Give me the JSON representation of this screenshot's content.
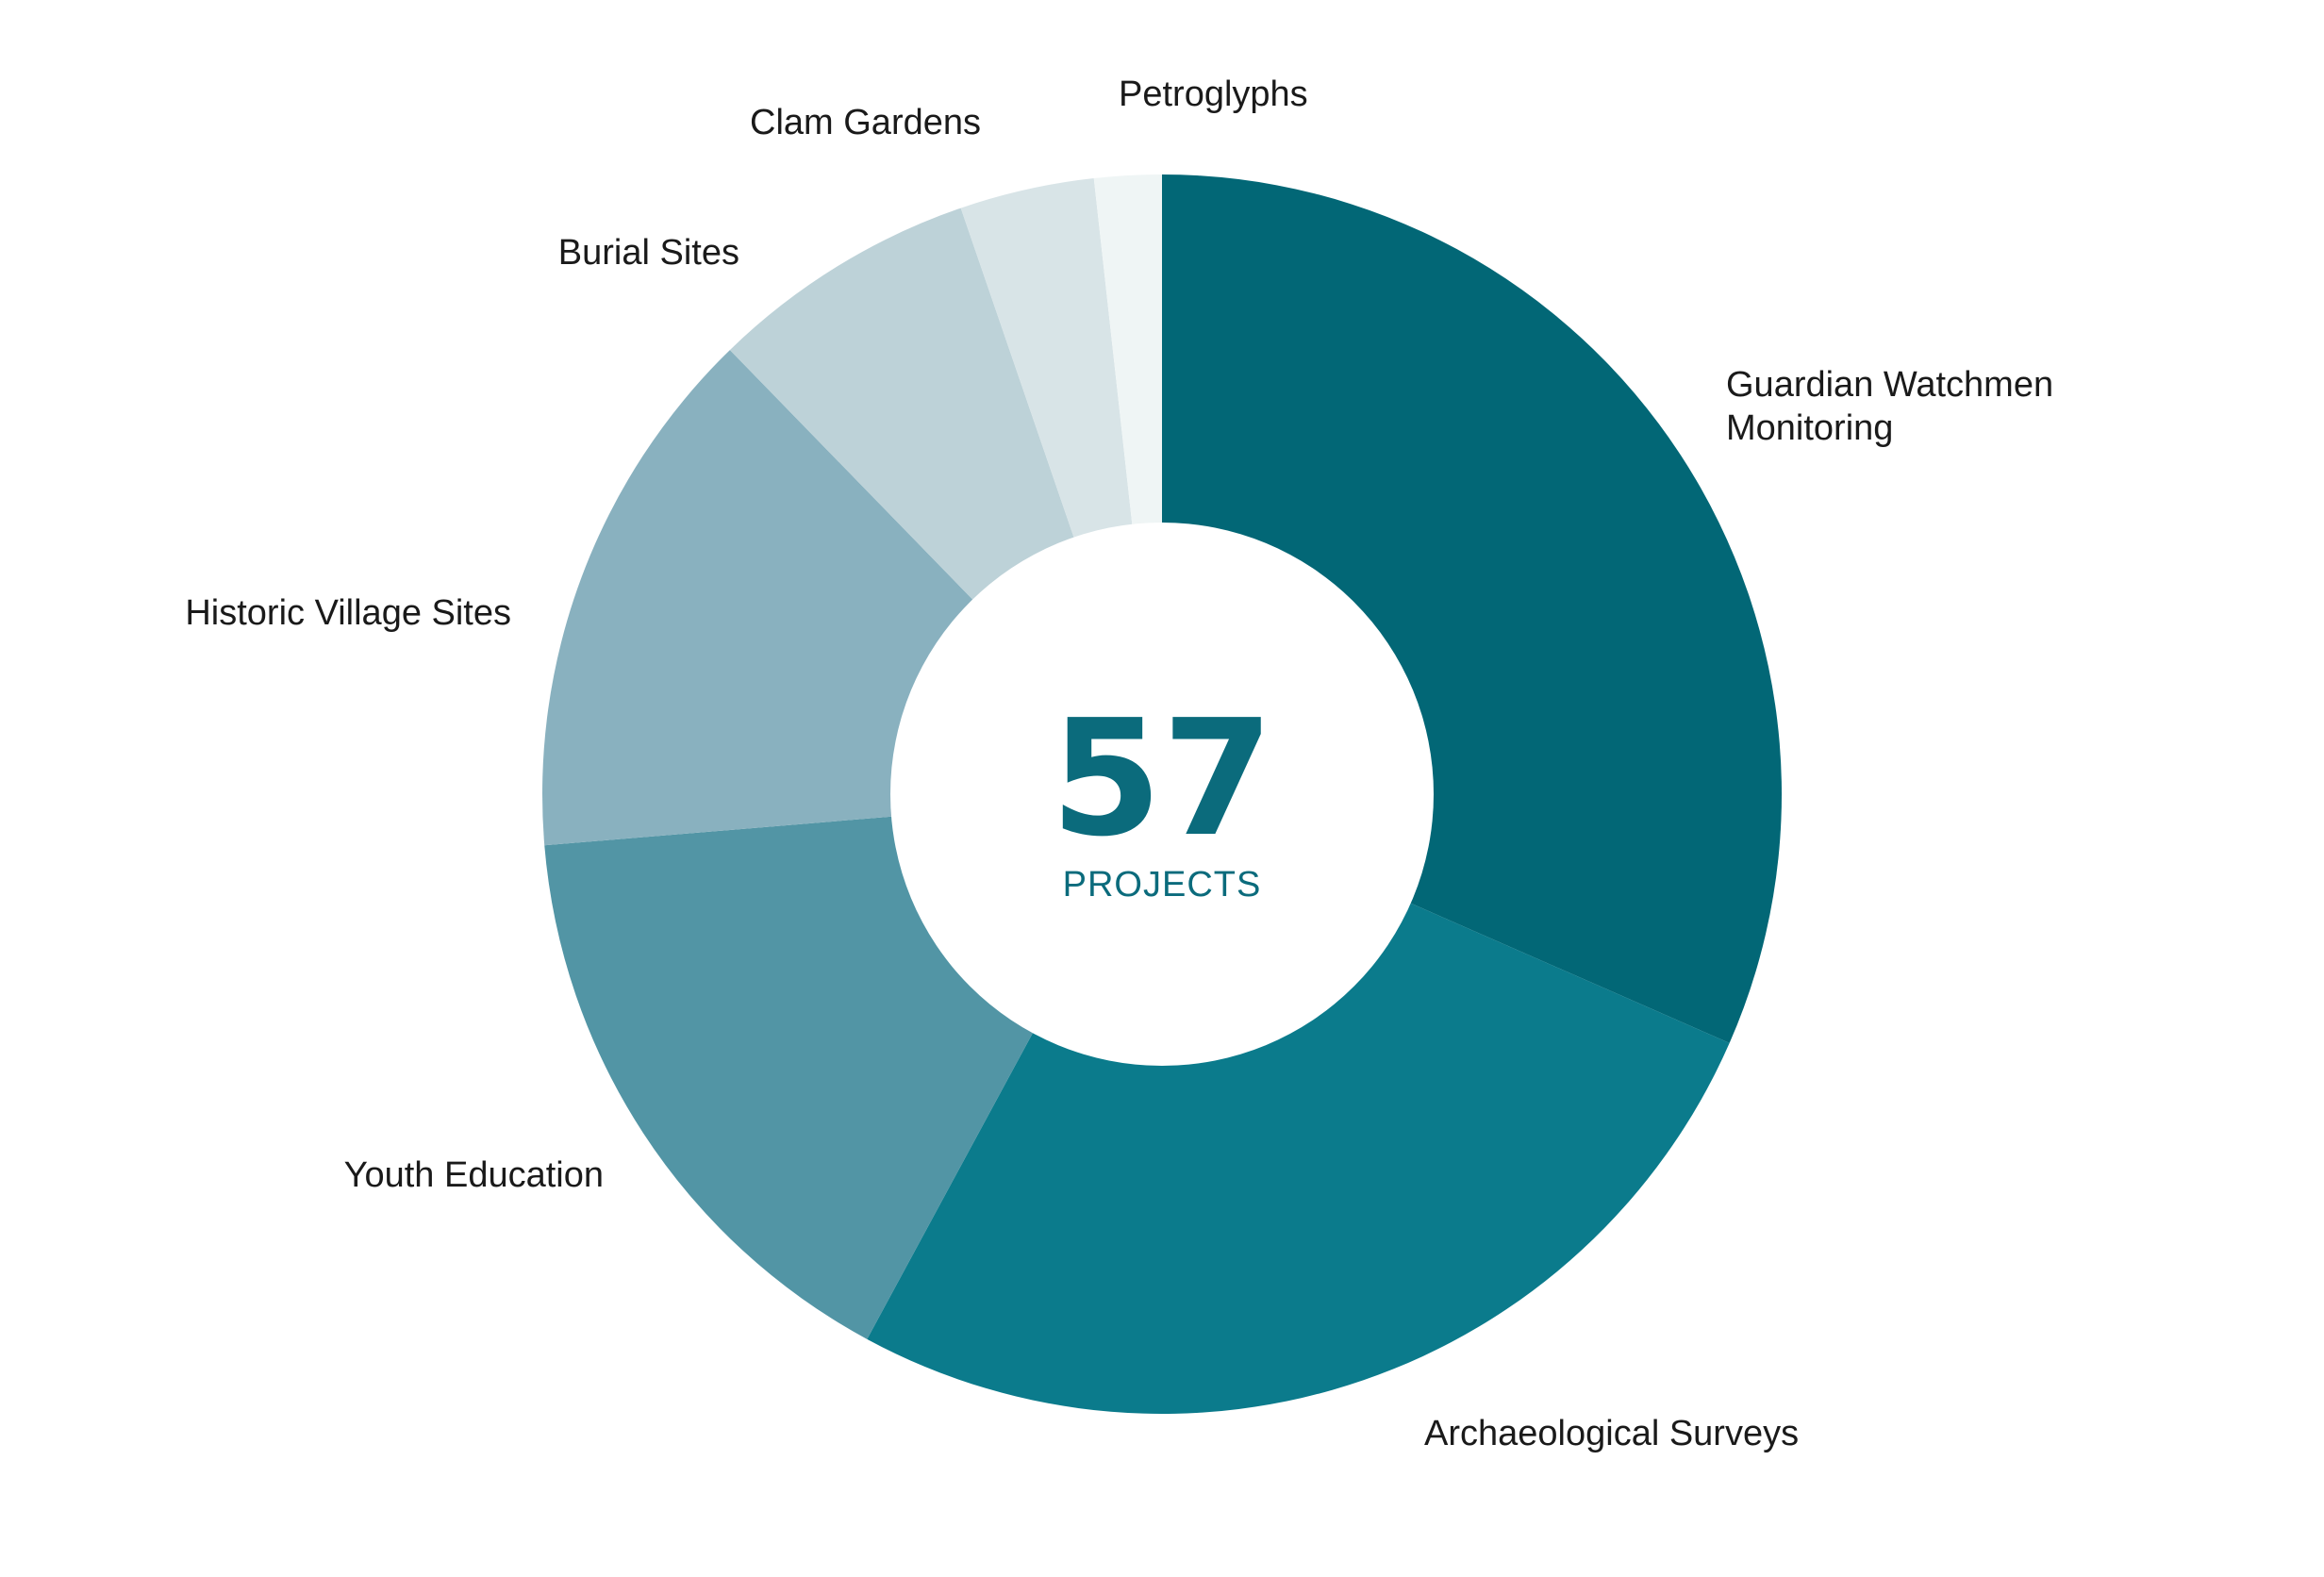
{
  "chart_data": {
    "type": "pie",
    "donut": true,
    "title": "",
    "center_value": "57",
    "center_label": "PROJECTS",
    "center_color": "#0b6b7c",
    "slices": [
      {
        "label": [
          "Guardian Watchmen",
          "Monitoring"
        ],
        "value": 18,
        "color": "#026776"
      },
      {
        "label": [
          "Archaeological Surveys"
        ],
        "value": 15,
        "color": "#0b7b8c"
      },
      {
        "label": [
          "Youth Education"
        ],
        "value": 9,
        "color": "#5295a5"
      },
      {
        "label": [
          "Historic Village Sites"
        ],
        "value": 8,
        "color": "#89b1bf"
      },
      {
        "label": [
          "Burial Sites"
        ],
        "value": 4,
        "color": "#bdd2d8"
      },
      {
        "label": [
          "Clam Gardens"
        ],
        "value": 2,
        "color": "#d8e4e7"
      },
      {
        "label": [
          "Petroglyphs"
        ],
        "value": 1,
        "color": "#eff5f5"
      }
    ]
  }
}
